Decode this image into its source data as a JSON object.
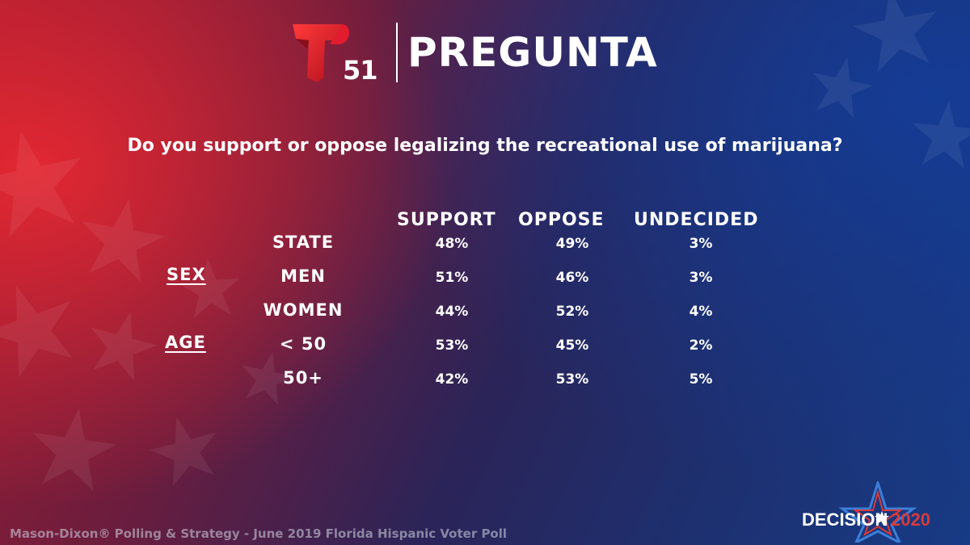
{
  "header": {
    "channel_number": "51",
    "title": "PREGUNTA"
  },
  "question": "Do you support or oppose legalizing the recreational use of marijuana?",
  "chart_data": {
    "type": "table",
    "columns": [
      "SUPPORT",
      "OPPOSE",
      "UNDECIDED"
    ],
    "rows": [
      {
        "group": "",
        "label": "STATE",
        "values": [
          "48%",
          "49%",
          "3%"
        ]
      },
      {
        "group": "SEX",
        "label": "MEN",
        "values": [
          "51%",
          "46%",
          "3%"
        ]
      },
      {
        "group": "",
        "label": "WOMEN",
        "values": [
          "44%",
          "52%",
          "4%"
        ]
      },
      {
        "group": "AGE",
        "label": "< 50",
        "values": [
          "53%",
          "45%",
          "2%"
        ]
      },
      {
        "group": "",
        "label": "50+",
        "values": [
          "42%",
          "53%",
          "5%"
        ]
      }
    ]
  },
  "footer": {
    "source": "Mason-Dixon® Polling & Strategy - June 2019 Florida Hispanic Voter Poll"
  },
  "badge": {
    "word": "DECISION",
    "year": "2020",
    "star_color": "#3b7fd9",
    "year_color": "#d93a3a"
  },
  "colors": {
    "logo_red": "#e31c2d",
    "text": "#ffffff"
  }
}
